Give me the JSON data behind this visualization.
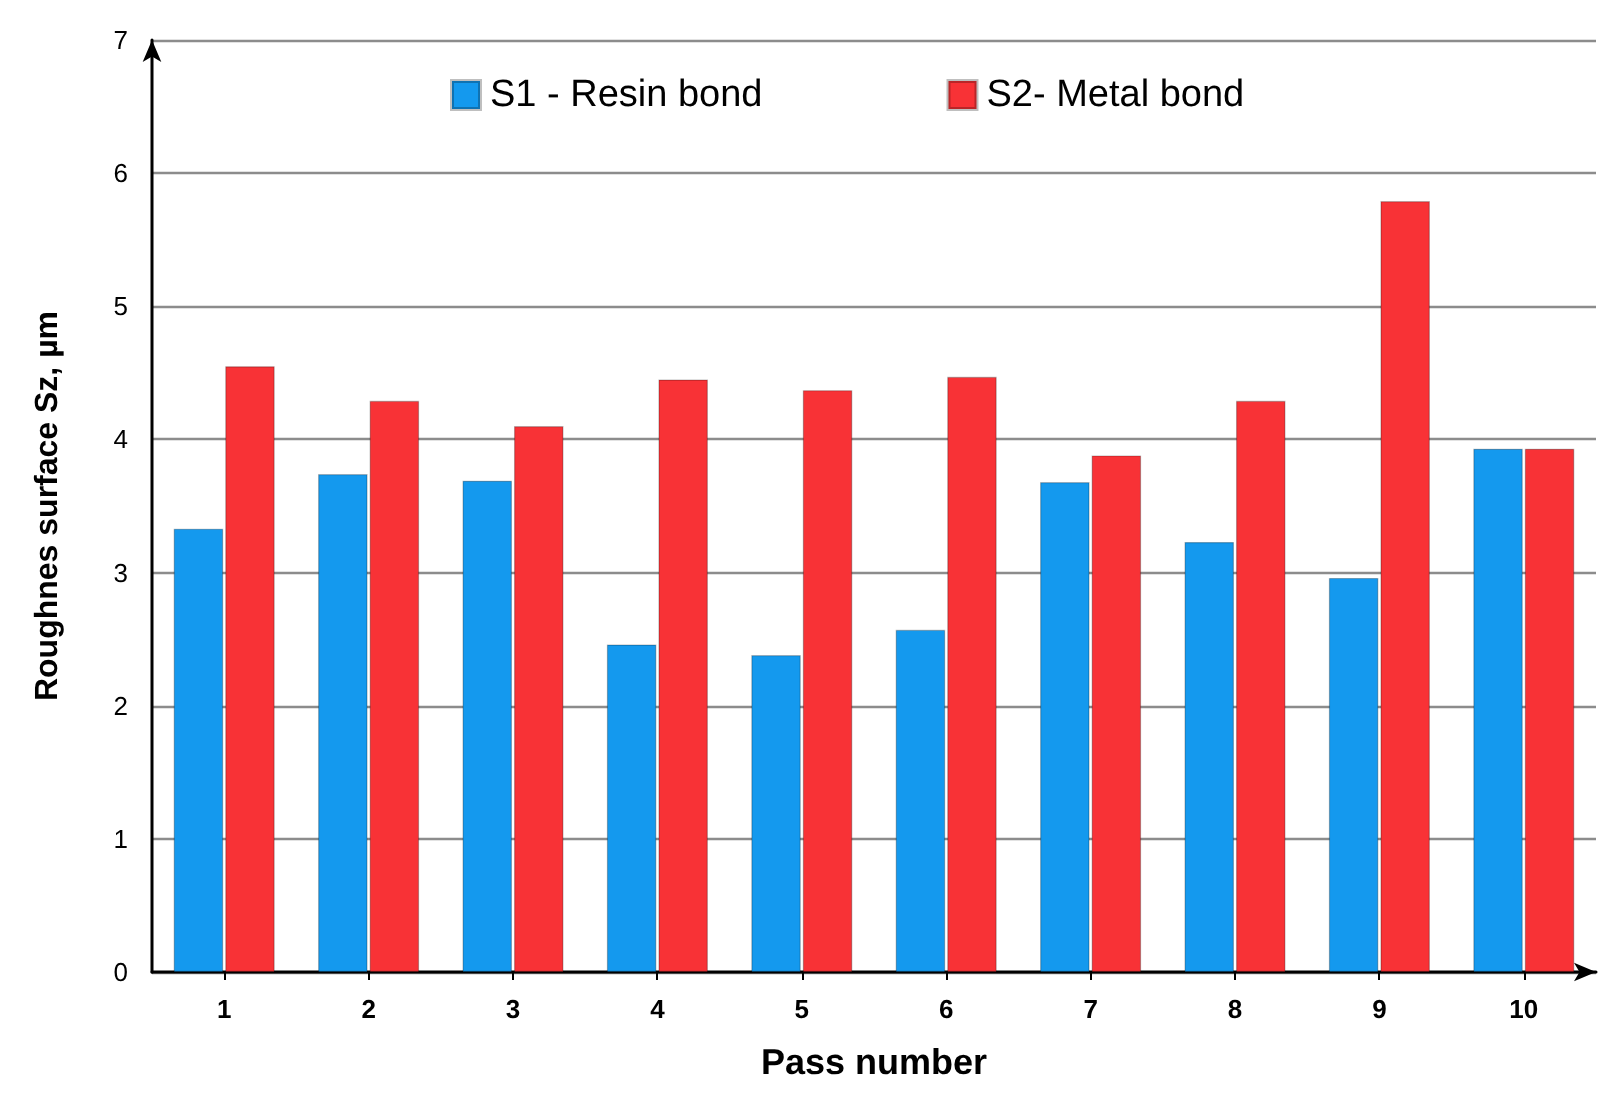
{
  "chart_data": {
    "type": "bar",
    "xlabel": "Pass number",
    "ylabel": "Roughnes surface Sz, µm",
    "categories": [
      "1",
      "2",
      "3",
      "4",
      "5",
      "6",
      "7",
      "8",
      "9",
      "10"
    ],
    "series": [
      {
        "name": "S1 - Resin bond",
        "color": "#1499ee",
        "values": [
          3.33,
          3.74,
          3.69,
          2.46,
          2.38,
          2.57,
          3.68,
          3.23,
          2.96,
          3.93
        ]
      },
      {
        "name": "S2- Metal bond",
        "color": "#f83236",
        "values": [
          4.55,
          4.29,
          4.1,
          4.45,
          4.37,
          4.47,
          3.88,
          4.29,
          5.79,
          3.93
        ]
      }
    ],
    "ylim": [
      0,
      7
    ],
    "yticks": [
      0,
      1,
      2,
      3,
      4,
      5,
      6,
      7
    ],
    "grid": "y",
    "legend": "top"
  }
}
